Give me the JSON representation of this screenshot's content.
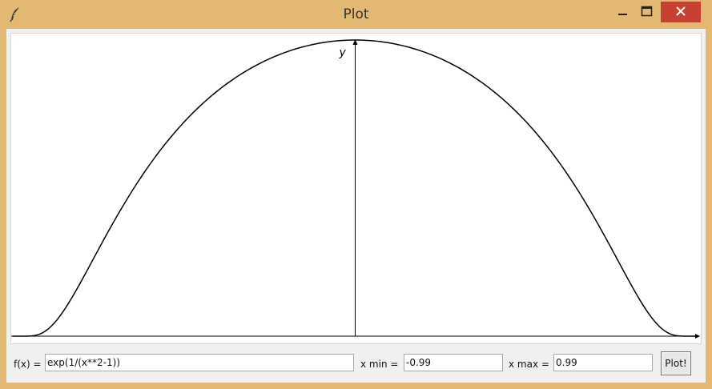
{
  "window": {
    "title": "Plot",
    "frame_color": "#e2b872",
    "close_color": "#c84031"
  },
  "icons": {
    "app": "feather-icon",
    "minimize": "minimize-icon",
    "maximize": "maximize-icon",
    "close": "close-icon"
  },
  "plot": {
    "y_axis_label": "y"
  },
  "chart_data": {
    "type": "line",
    "function": "exp(1/(x**2-1))",
    "xlim": [
      -0.99,
      0.99
    ],
    "y_axis_label": "y",
    "grid": false,
    "curve_color": "#000000",
    "axis_color": "#000000"
  },
  "controls": {
    "fx_label": "f(x)  =",
    "fx_value": "exp(1/(x**2-1))",
    "xmin_label": "x min  =",
    "xmin_value": "-0.99",
    "xmax_label": "x max  =",
    "xmax_value": "0.99",
    "plot_button": "Plot!"
  }
}
